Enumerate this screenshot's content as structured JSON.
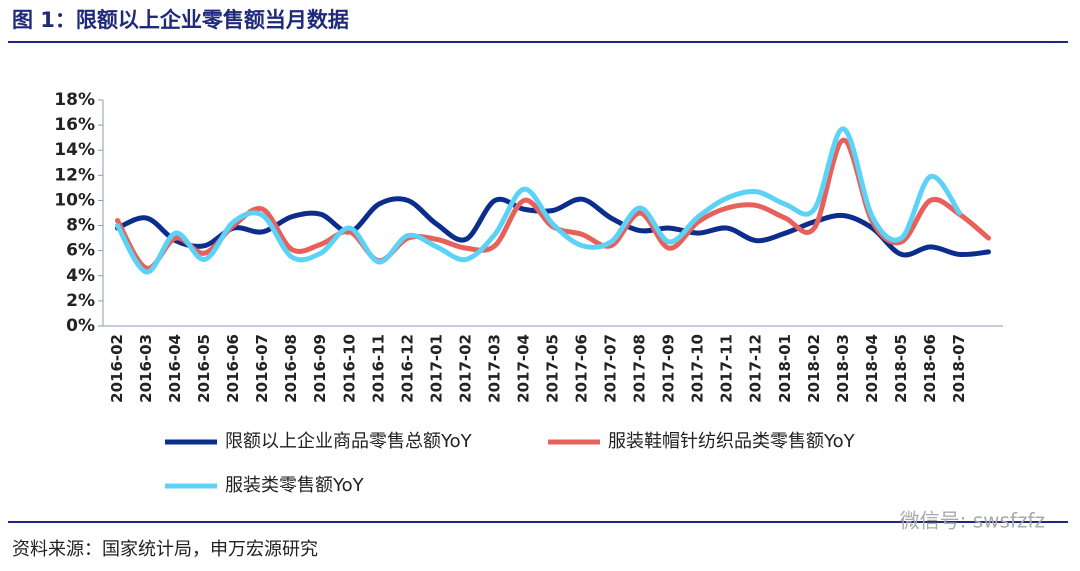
{
  "chart_data": {
    "type": "line",
    "title": "图 1：限额以上企业零售额当月数据",
    "source": "资料来源：国家统计局，申万宏源研究",
    "watermark": "微信号: swsfzfz",
    "categories": [
      "2016-02",
      "2016-03",
      "2016-04",
      "2016-05",
      "2016-06",
      "2016-07",
      "2016-08",
      "2016-09",
      "2016-10",
      "2016-11",
      "2016-12",
      "2017-01",
      "2017-02",
      "2017-03",
      "2017-04",
      "2017-05",
      "2017-06",
      "2017-07",
      "2017-08",
      "2017-09",
      "2017-10",
      "2017-11",
      "2017-12",
      "2018-01",
      "2018-02",
      "2018-03",
      "2018-04",
      "2018-05",
      "2018-06",
      "2018-07",
      null
    ],
    "series": [
      {
        "name": "限额以上企业商品零售总额YoY",
        "color": "#0b2d8c",
        "values": [
          7.8,
          8.6,
          6.8,
          6.4,
          7.8,
          7.5,
          8.7,
          8.9,
          7.5,
          9.7,
          10.0,
          8.1,
          6.9,
          10.0,
          9.3,
          9.2,
          10.1,
          8.6,
          7.6,
          7.8,
          7.4,
          7.8,
          6.8,
          7.4,
          8.3,
          8.8,
          7.8,
          5.7,
          6.3,
          5.7,
          5.9
        ]
      },
      {
        "name": "服装鞋帽针纺织品类零售额YoY",
        "color": "#e8605a",
        "values": [
          8.4,
          4.6,
          7.0,
          5.8,
          8.0,
          9.3,
          6.1,
          6.5,
          7.5,
          5.2,
          7.0,
          6.9,
          6.2,
          6.4,
          10.0,
          7.9,
          7.3,
          6.4,
          9.0,
          6.2,
          8.3,
          9.4,
          9.6,
          8.6,
          7.8,
          14.8,
          8.3,
          6.7,
          10.0,
          8.9,
          7.0
        ]
      },
      {
        "name": "服装类零售额YoY",
        "color": "#5cd3f6",
        "values": [
          8.0,
          4.3,
          7.4,
          5.3,
          8.3,
          8.8,
          5.5,
          5.8,
          7.8,
          5.1,
          7.2,
          6.3,
          5.3,
          7.3,
          10.9,
          8.1,
          6.4,
          6.7,
          9.4,
          6.7,
          8.7,
          10.2,
          10.7,
          9.7,
          9.3,
          15.7,
          8.7,
          7.0,
          11.9,
          9.0,
          null
        ]
      }
    ],
    "ylim": [
      0,
      18
    ],
    "yticks": [
      {
        "value": 0,
        "label": "0%"
      },
      {
        "value": 2,
        "label": "2%"
      },
      {
        "value": 4,
        "label": "4%"
      },
      {
        "value": 6,
        "label": "6%"
      },
      {
        "value": 8,
        "label": "8%"
      },
      {
        "value": 10,
        "label": "10%"
      },
      {
        "value": 12,
        "label": "12%"
      },
      {
        "value": 14,
        "label": "14%"
      },
      {
        "value": 16,
        "label": "16%"
      },
      {
        "value": 18,
        "label": "18%"
      }
    ],
    "grid": false
  }
}
